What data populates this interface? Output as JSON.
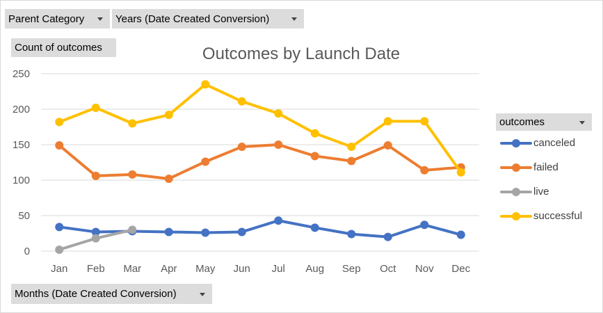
{
  "filters": {
    "parent_category": "Parent Category",
    "years": "Years (Date Created Conversion)",
    "months": "Months (Date Created Conversion)"
  },
  "value_field": "Count of outcomes",
  "legend_header": "outcomes",
  "colors": {
    "canceled": "#4472c4",
    "failed": "#ed7d31",
    "live": "#a5a5a5",
    "successful": "#ffc000",
    "gridline": "#d9d9d9",
    "axis_text": "#595959"
  },
  "chart_data": {
    "type": "line",
    "title": "Outcomes by Launch Date",
    "xlabel": "",
    "ylabel": "",
    "categories": [
      "Jan",
      "Feb",
      "Mar",
      "Apr",
      "May",
      "Jun",
      "Jul",
      "Aug",
      "Sep",
      "Oct",
      "Nov",
      "Dec"
    ],
    "ylim": [
      0,
      250
    ],
    "yticks": [
      0,
      50,
      100,
      150,
      200,
      250
    ],
    "grid": true,
    "legend_position": "right",
    "series": [
      {
        "name": "canceled",
        "values": [
          34,
          27,
          28,
          27,
          26,
          27,
          43,
          33,
          24,
          20,
          37,
          23
        ]
      },
      {
        "name": "failed",
        "values": [
          149,
          106,
          108,
          102,
          126,
          147,
          150,
          134,
          127,
          149,
          114,
          118
        ]
      },
      {
        "name": "live",
        "values": [
          2,
          18,
          30,
          null,
          null,
          null,
          null,
          null,
          null,
          null,
          null,
          null
        ]
      },
      {
        "name": "successful",
        "values": [
          182,
          202,
          180,
          192,
          235,
          211,
          194,
          166,
          147,
          183,
          183,
          111
        ]
      }
    ]
  }
}
